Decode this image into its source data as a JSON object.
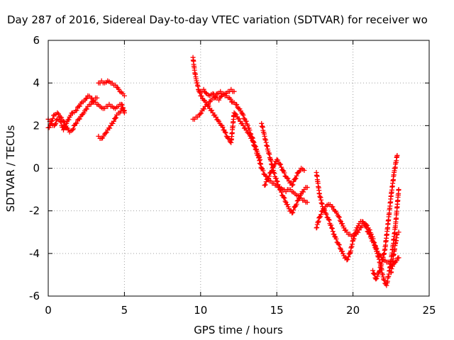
{
  "chart_data": {
    "type": "scatter",
    "title": "Day 287 of 2016, Sidereal Day-to-day VTEC variation (SDTVAR) for receiver wo",
    "xlabel": "GPS time / hours",
    "ylabel": "SDTVAR / TECUs",
    "xlim": [
      0,
      25
    ],
    "ylim": [
      -6,
      6
    ],
    "x_ticks": [
      0,
      5,
      10,
      15,
      20,
      25
    ],
    "y_ticks": [
      -6,
      -4,
      -2,
      0,
      2,
      4,
      6
    ],
    "grid": true,
    "marker": "+",
    "marker_color": "#ff0000",
    "series": [
      {
        "segments": [
          {
            "x": [
              0.0,
              0.2,
              0.4,
              0.6,
              0.8,
              1.0,
              1.2,
              1.4,
              1.6,
              1.8,
              2.0,
              2.2,
              2.4,
              2.6,
              2.8,
              3.0,
              3.2,
              3.4,
              3.6,
              3.8,
              4.0,
              4.2,
              4.4,
              4.6,
              4.8,
              5.0
            ],
            "y": [
              1.9,
              2.1,
              2.0,
              2.3,
              2.2,
              1.8,
              2.1,
              2.4,
              2.6,
              2.7,
              2.9,
              3.1,
              3.2,
              3.4,
              3.3,
              3.1,
              3.0,
              2.9,
              2.8,
              2.9,
              3.0,
              2.9,
              2.8,
              2.9,
              3.0,
              2.7
            ]
          },
          {
            "x": [
              0.0,
              0.2,
              0.4,
              0.6,
              0.8,
              1.0,
              1.2,
              1.4,
              1.6,
              1.8,
              2.0,
              2.2,
              2.4,
              2.6,
              2.8,
              3.0,
              3.2
            ],
            "y": [
              2.3,
              2.2,
              2.5,
              2.6,
              2.4,
              2.2,
              1.9,
              1.7,
              1.8,
              2.1,
              2.3,
              2.5,
              2.7,
              2.9,
              3.0,
              3.2,
              3.3
            ]
          },
          {
            "x": [
              3.3,
              3.5,
              3.7,
              3.9,
              4.1,
              4.3,
              4.5,
              4.7,
              4.9,
              5.0
            ],
            "y": [
              4.0,
              4.1,
              4.0,
              4.1,
              4.0,
              3.9,
              3.8,
              3.6,
              3.5,
              3.4
            ]
          },
          {
            "x": [
              3.3,
              3.5,
              3.7,
              3.9,
              4.1,
              4.3,
              4.5,
              4.7,
              4.9,
              5.0
            ],
            "y": [
              1.5,
              1.4,
              1.6,
              1.8,
              2.0,
              2.2,
              2.5,
              2.6,
              2.8,
              2.6
            ]
          }
        ]
      },
      {
        "segments": [
          {
            "x": [
              9.5,
              9.6,
              9.7,
              9.8,
              9.9,
              10.0,
              10.2,
              10.4,
              10.6,
              10.8,
              11.0,
              11.2,
              11.4,
              11.6,
              11.8,
              12.0,
              12.2,
              12.4,
              12.6,
              12.8,
              13.0,
              13.2,
              13.4,
              13.6,
              13.8,
              14.0,
              14.2,
              14.4,
              14.6,
              14.8,
              15.0,
              15.2,
              15.4,
              15.6,
              15.8,
              16.0,
              16.2,
              16.4,
              16.6,
              16.8,
              17.0
            ],
            "y": [
              5.2,
              4.6,
              4.2,
              3.9,
              3.6,
              3.4,
              3.2,
              3.0,
              2.8,
              2.6,
              2.4,
              2.2,
              2.0,
              1.7,
              1.4,
              1.2,
              2.6,
              2.4,
              2.2,
              2.0,
              1.8,
              1.6,
              1.3,
              0.9,
              0.5,
              0.0,
              -0.3,
              -0.5,
              -0.6,
              -0.7,
              -0.8,
              -0.9,
              -1.0,
              -1.1,
              -1.0,
              -1.1,
              -1.2,
              -1.3,
              -1.4,
              -1.5,
              -1.6
            ]
          },
          {
            "x": [
              9.5,
              9.7,
              9.9,
              10.1,
              10.3,
              10.5,
              10.7,
              10.9,
              11.1,
              11.3,
              11.5,
              11.7,
              11.9,
              12.1,
              12.3,
              12.5,
              12.7,
              12.9,
              13.1,
              13.3,
              13.5,
              13.7,
              13.9
            ],
            "y": [
              2.3,
              2.4,
              2.5,
              2.7,
              2.9,
              3.0,
              3.2,
              3.3,
              3.5,
              3.6,
              3.5,
              3.4,
              3.3,
              3.1,
              3.0,
              2.8,
              2.6,
              2.3,
              2.0,
              1.6,
              1.2,
              0.8,
              0.4
            ]
          },
          {
            "x": [
              10.0,
              10.2,
              10.4,
              10.6,
              10.8,
              11.0,
              11.2,
              11.4,
              11.6,
              11.8,
              12.0,
              12.2
            ],
            "y": [
              3.6,
              3.7,
              3.5,
              3.4,
              3.5,
              3.3,
              3.2,
              3.4,
              3.5,
              3.6,
              3.7,
              3.6
            ]
          },
          {
            "x": [
              14.0,
              14.2,
              14.4,
              14.6,
              14.8,
              15.0,
              15.2,
              15.4,
              15.6,
              15.8,
              16.0,
              16.2,
              16.4,
              16.6,
              16.8,
              17.0
            ],
            "y": [
              2.1,
              1.5,
              0.9,
              0.4,
              -0.2,
              -0.6,
              -1.0,
              -1.3,
              -1.6,
              -1.9,
              -2.1,
              -1.8,
              -1.5,
              -1.2,
              -1.0,
              -0.9
            ]
          },
          {
            "x": [
              14.2,
              14.4,
              14.6,
              14.8,
              15.0,
              15.2,
              15.4,
              15.6,
              15.8,
              16.0,
              16.2,
              16.4,
              16.6,
              16.8
            ],
            "y": [
              -0.8,
              -0.5,
              -0.2,
              0.1,
              0.4,
              0.2,
              -0.1,
              -0.4,
              -0.6,
              -0.8,
              -0.5,
              -0.2,
              0.0,
              -0.1
            ]
          },
          {
            "x": [
              17.6,
              17.8,
              18.0,
              18.2,
              18.4,
              18.6,
              18.8,
              19.0,
              19.2,
              19.4,
              19.6,
              19.8,
              20.0,
              20.2,
              20.4,
              20.6,
              20.8,
              21.0,
              21.2,
              21.4,
              21.6,
              21.8,
              22.0,
              22.2,
              22.4,
              22.6,
              22.8,
              23.0
            ],
            "y": [
              -0.2,
              -1.2,
              -1.8,
              -2.1,
              -2.4,
              -2.8,
              -3.2,
              -3.5,
              -3.8,
              -4.1,
              -4.3,
              -4.0,
              -3.4,
              -2.9,
              -2.6,
              -2.5,
              -2.7,
              -3.0,
              -3.3,
              -3.6,
              -3.9,
              -4.1,
              -4.3,
              -4.4,
              -4.5,
              -4.6,
              -4.4,
              -4.2
            ]
          },
          {
            "x": [
              17.6,
              17.8,
              18.0,
              18.2,
              18.4,
              18.6,
              18.8,
              19.0,
              19.2,
              19.4,
              19.6,
              19.8,
              20.0,
              20.2,
              20.4,
              20.6,
              20.8,
              21.0,
              21.2,
              21.4,
              21.6,
              21.8,
              22.0,
              22.2,
              22.4,
              22.6,
              22.8,
              23.0
            ],
            "y": [
              -2.8,
              -2.3,
              -2.0,
              -1.8,
              -1.7,
              -1.8,
              -2.0,
              -2.2,
              -2.5,
              -2.8,
              -3.0,
              -3.1,
              -3.2,
              -3.1,
              -2.9,
              -2.7,
              -2.6,
              -2.8,
              -3.1,
              -3.5,
              -4.0,
              -4.5,
              -5.2,
              -5.5,
              -4.8,
              -3.8,
              -2.6,
              -1.0
            ]
          },
          {
            "x": [
              21.3,
              21.5,
              21.7,
              21.9,
              22.1,
              22.3,
              22.5,
              22.7,
              22.9
            ],
            "y": [
              -4.8,
              -5.2,
              -4.9,
              -4.4,
              -3.8,
              -2.6,
              -1.3,
              -0.2,
              0.6
            ]
          },
          {
            "x": [
              22.5,
              22.6,
              22.7,
              22.8,
              22.9,
              23.0
            ],
            "y": [
              -4.9,
              -4.4,
              -3.9,
              -3.5,
              -3.1,
              -3.0
            ]
          }
        ]
      }
    ]
  }
}
